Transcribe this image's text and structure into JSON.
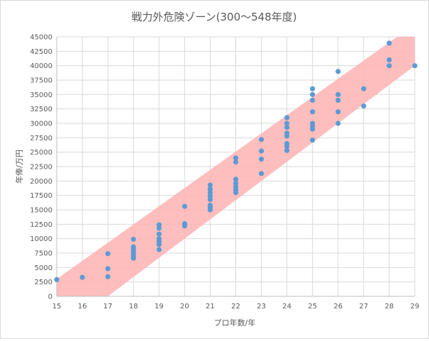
{
  "chart_data": {
    "type": "scatter",
    "title": "戦力外危険ゾーン(300〜548年度)",
    "xlabel": "プロ年数/年",
    "ylabel": "年俸/万円",
    "xlim": [
      15,
      29
    ],
    "ylim": [
      0,
      45000
    ],
    "x_ticks": [
      "15",
      "16",
      "17",
      "18",
      "19",
      "20",
      "21",
      "22",
      "23",
      "24",
      "25",
      "26",
      "27",
      "28",
      "29"
    ],
    "y_ticks": [
      "0",
      "2500",
      "5000",
      "7500",
      "10000",
      "12500",
      "15000",
      "17500",
      "20000",
      "22500",
      "25000",
      "27500",
      "30000",
      "32500",
      "35000",
      "37500",
      "40000",
      "42500",
      "45000"
    ],
    "grid": "vertical-and-horizontal",
    "colors": {
      "band": "#ffb3b3",
      "points": "#5b9bd5",
      "grid": "#d9d9d9",
      "text": "#595959"
    },
    "band": {
      "lower": [
        [
          17,
          0
        ],
        [
          29,
          40000
        ]
      ],
      "upper": [
        [
          15,
          3000
        ],
        [
          28.3,
          45000
        ]
      ]
    },
    "points": [
      [
        15,
        2900
      ],
      [
        16,
        3300
      ],
      [
        17,
        3400
      ],
      [
        17,
        4800
      ],
      [
        17,
        7400
      ],
      [
        18,
        6600
      ],
      [
        18,
        7000
      ],
      [
        18,
        7400
      ],
      [
        18,
        7800
      ],
      [
        18,
        8200
      ],
      [
        18,
        8600
      ],
      [
        18,
        9900
      ],
      [
        19,
        8100
      ],
      [
        19,
        9000
      ],
      [
        19,
        9500
      ],
      [
        19,
        10000
      ],
      [
        19,
        10800
      ],
      [
        19,
        11800
      ],
      [
        19,
        12400
      ],
      [
        20,
        12200
      ],
      [
        20,
        12600
      ],
      [
        20,
        15600
      ],
      [
        21,
        15000
      ],
      [
        21,
        15400
      ],
      [
        21,
        15800
      ],
      [
        21,
        16800
      ],
      [
        21,
        17400
      ],
      [
        21,
        18000
      ],
      [
        21,
        18600
      ],
      [
        21,
        19300
      ],
      [
        22,
        18000
      ],
      [
        22,
        18500
      ],
      [
        22,
        19000
      ],
      [
        22,
        19600
      ],
      [
        22,
        20300
      ],
      [
        22,
        23300
      ],
      [
        22,
        24000
      ],
      [
        23,
        21300
      ],
      [
        23,
        23800
      ],
      [
        23,
        25200
      ],
      [
        23,
        27200
      ],
      [
        24,
        25300
      ],
      [
        24,
        26000
      ],
      [
        24,
        26500
      ],
      [
        24,
        27800
      ],
      [
        24,
        28300
      ],
      [
        24,
        29300
      ],
      [
        24,
        30000
      ],
      [
        24,
        31000
      ],
      [
        25,
        27100
      ],
      [
        25,
        29000
      ],
      [
        25,
        29500
      ],
      [
        25,
        30000
      ],
      [
        25,
        32000
      ],
      [
        25,
        34000
      ],
      [
        25,
        35000
      ],
      [
        25,
        36000
      ],
      [
        26,
        30000
      ],
      [
        26,
        32000
      ],
      [
        26,
        34000
      ],
      [
        26,
        35000
      ],
      [
        26,
        39000
      ],
      [
        27,
        33000
      ],
      [
        27,
        36000
      ],
      [
        28,
        40000
      ],
      [
        28,
        41000
      ],
      [
        28,
        43900
      ],
      [
        29,
        40000
      ]
    ]
  }
}
